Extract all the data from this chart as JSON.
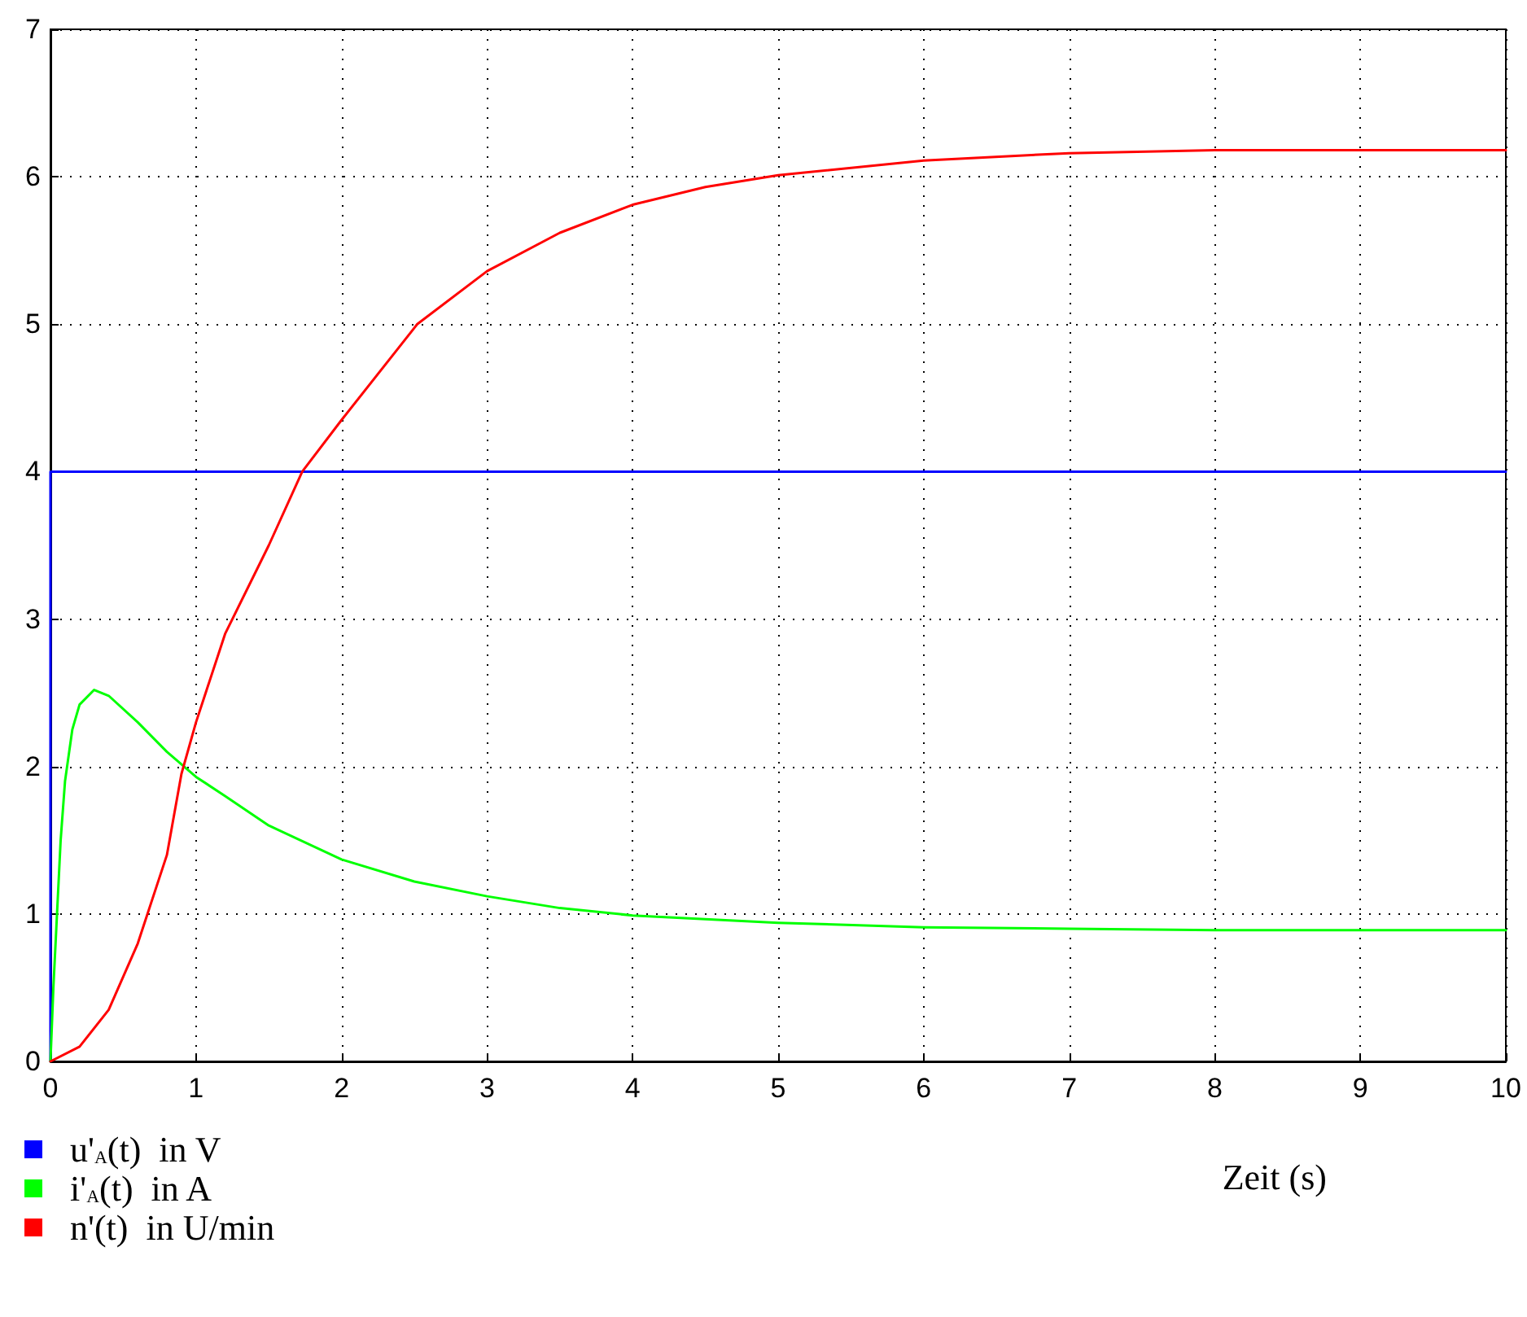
{
  "chart_data": {
    "type": "line",
    "xlabel": "Zeit (s)",
    "xlim": [
      0,
      10
    ],
    "xticks": [
      0,
      1,
      2,
      3,
      4,
      5,
      6,
      7,
      8,
      9,
      10
    ],
    "ylim": [
      0,
      7
    ],
    "yticks": [
      0,
      1,
      2,
      3,
      4,
      5,
      6,
      7
    ],
    "grid": true,
    "legend": "bottom left",
    "marker": "none",
    "line_style": "solid",
    "series": [
      {
        "name": "u'$_{A}$(t)  in V",
        "color": "#0000ff",
        "x": [
          0,
          0,
          10
        ],
        "values": [
          0,
          4,
          4
        ]
      },
      {
        "name": "i'$_{A}$(t)  in A",
        "color": "#00ff00",
        "x": [
          0,
          0.02,
          0.04,
          0.07,
          0.1,
          0.15,
          0.2,
          0.3,
          0.4,
          0.6,
          0.8,
          1.0,
          1.2,
          1.5,
          2,
          2.5,
          3,
          3.5,
          4,
          5,
          6,
          7,
          8,
          10
        ],
        "values": [
          0,
          0.5,
          0.9,
          1.5,
          1.9,
          2.25,
          2.42,
          2.52,
          2.48,
          2.3,
          2.1,
          1.93,
          1.8,
          1.6,
          1.37,
          1.22,
          1.12,
          1.04,
          0.99,
          0.94,
          0.91,
          0.9,
          0.89,
          0.89
        ]
      },
      {
        "name": "n'(t)  in U/min",
        "color": "#ff0000",
        "x": [
          0,
          0.2,
          0.4,
          0.6,
          0.8,
          0.9,
          1,
          1.2,
          1.5,
          1.73,
          2,
          2.52,
          3,
          3.5,
          4,
          4.5,
          5,
          6,
          7,
          8,
          10
        ],
        "values": [
          0,
          0.1,
          0.35,
          0.8,
          1.4,
          1.95,
          2.3,
          2.9,
          3.5,
          4,
          4.35,
          5,
          5.36,
          5.62,
          5.81,
          5.93,
          6.01,
          6.11,
          6.16,
          6.18,
          6.18
        ]
      }
    ]
  }
}
